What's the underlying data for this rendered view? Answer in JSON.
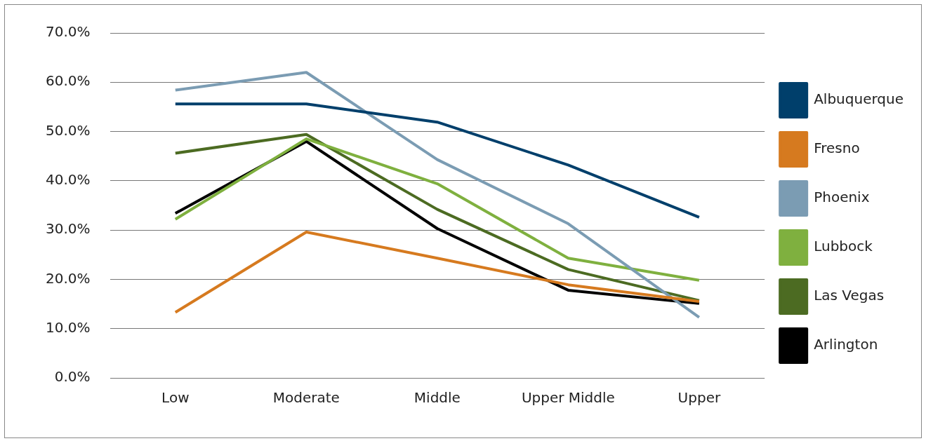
{
  "chart_data": {
    "type": "line",
    "categories": [
      "Low",
      "Moderate",
      "Middle",
      "Upper Middle",
      "Upper"
    ],
    "series": [
      {
        "name": "Albuquerque",
        "color": "#003f6b",
        "values": [
          55.6,
          55.6,
          51.9,
          43.2,
          32.6
        ]
      },
      {
        "name": "Fresno",
        "color": "#d67a1f",
        "values": [
          13.3,
          29.6,
          24.3,
          18.9,
          15.5
        ]
      },
      {
        "name": "Phoenix",
        "color": "#7b9cb3",
        "values": [
          58.4,
          62.0,
          44.3,
          31.3,
          12.3
        ]
      },
      {
        "name": "Lubbock",
        "color": "#7fb03f",
        "values": [
          32.2,
          48.5,
          39.4,
          24.3,
          19.8
        ]
      },
      {
        "name": "Las Vegas",
        "color": "#4c6b22",
        "values": [
          45.6,
          49.4,
          34.2,
          22.0,
          15.7
        ]
      },
      {
        "name": "Arlington",
        "color": "#000000",
        "values": [
          33.4,
          48.0,
          30.3,
          17.8,
          15.1
        ]
      }
    ],
    "ylim": [
      0,
      70
    ],
    "yticks": [
      {
        "value": 0,
        "label": "0.0%"
      },
      {
        "value": 10,
        "label": "10.0%"
      },
      {
        "value": 20,
        "label": "20.0%"
      },
      {
        "value": 30,
        "label": "30.0%"
      },
      {
        "value": 40,
        "label": "40.0%"
      },
      {
        "value": 50,
        "label": "50.0%"
      },
      {
        "value": 60,
        "label": "60.0%"
      },
      {
        "value": 70,
        "label": "70.0%"
      }
    ],
    "grid": "y",
    "legend": "right",
    "marker": "none",
    "line_style": "solid"
  }
}
